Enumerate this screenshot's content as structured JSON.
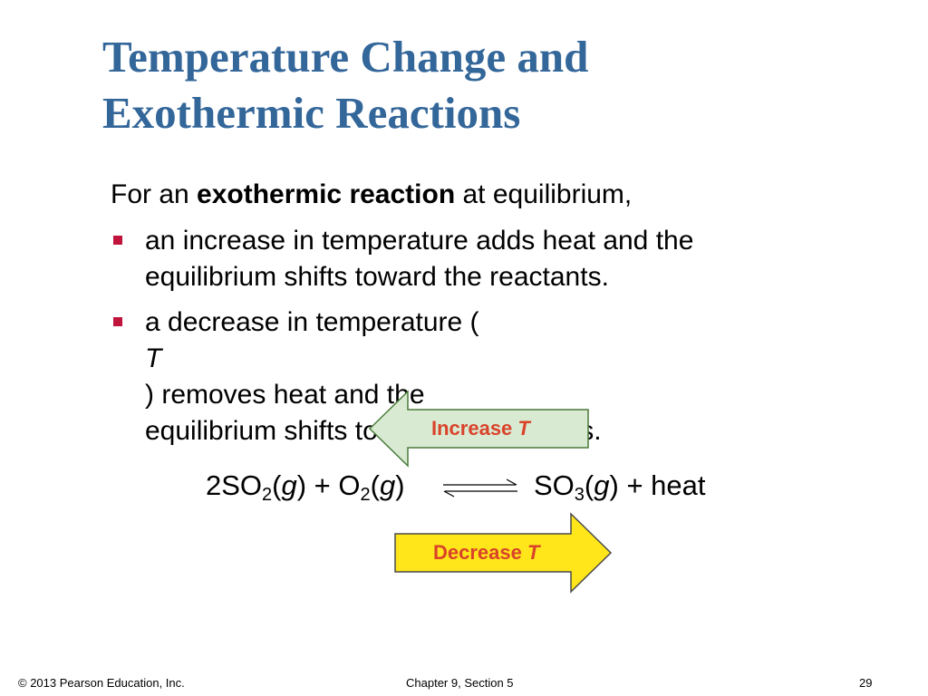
{
  "title": {
    "line1": "Temperature Change and",
    "line2": "Exothermic Reactions"
  },
  "intro": {
    "prefix": "For an ",
    "bold": "exothermic reaction",
    "suffix": " at equilibrium,"
  },
  "bullets": [
    {
      "line1": "an increase in temperature adds heat and the",
      "line2": "equilibrium shifts toward the reactants."
    },
    {
      "line1_before": "a decrease in temperature (",
      "line1_var": "T",
      "line1_after": ") removes heat and the",
      "line2": "equilibrium shifts toward the products."
    }
  ],
  "arrows": {
    "increase": {
      "label": "Increase ",
      "var": "T",
      "fill": "#d9ead3",
      "stroke": "#4a7a3a"
    },
    "decrease": {
      "label": "Decrease ",
      "var": "T",
      "fill": "#ffe61a",
      "stroke": "#4a4a4a"
    }
  },
  "equation": {
    "left": {
      "coef": "2SO",
      "sub1": "2",
      "open1": "(",
      "phase1": "g",
      "close1": ")",
      "plus": " + O",
      "sub2": "2",
      "open2": "(",
      "phase2": "g",
      "close2": ")"
    },
    "right": {
      "species": "SO",
      "sub": "3",
      "open": "(",
      "phase": "g",
      "close": ")",
      "rest": " + heat"
    }
  },
  "footer": {
    "copyright": "© 2013 Pearson Education, Inc.",
    "chapter": "Chapter 9, Section 5",
    "page": "29"
  },
  "colors": {
    "title": "#336699",
    "bullet": "#c0143c",
    "arrow_text": "#d9432a"
  }
}
